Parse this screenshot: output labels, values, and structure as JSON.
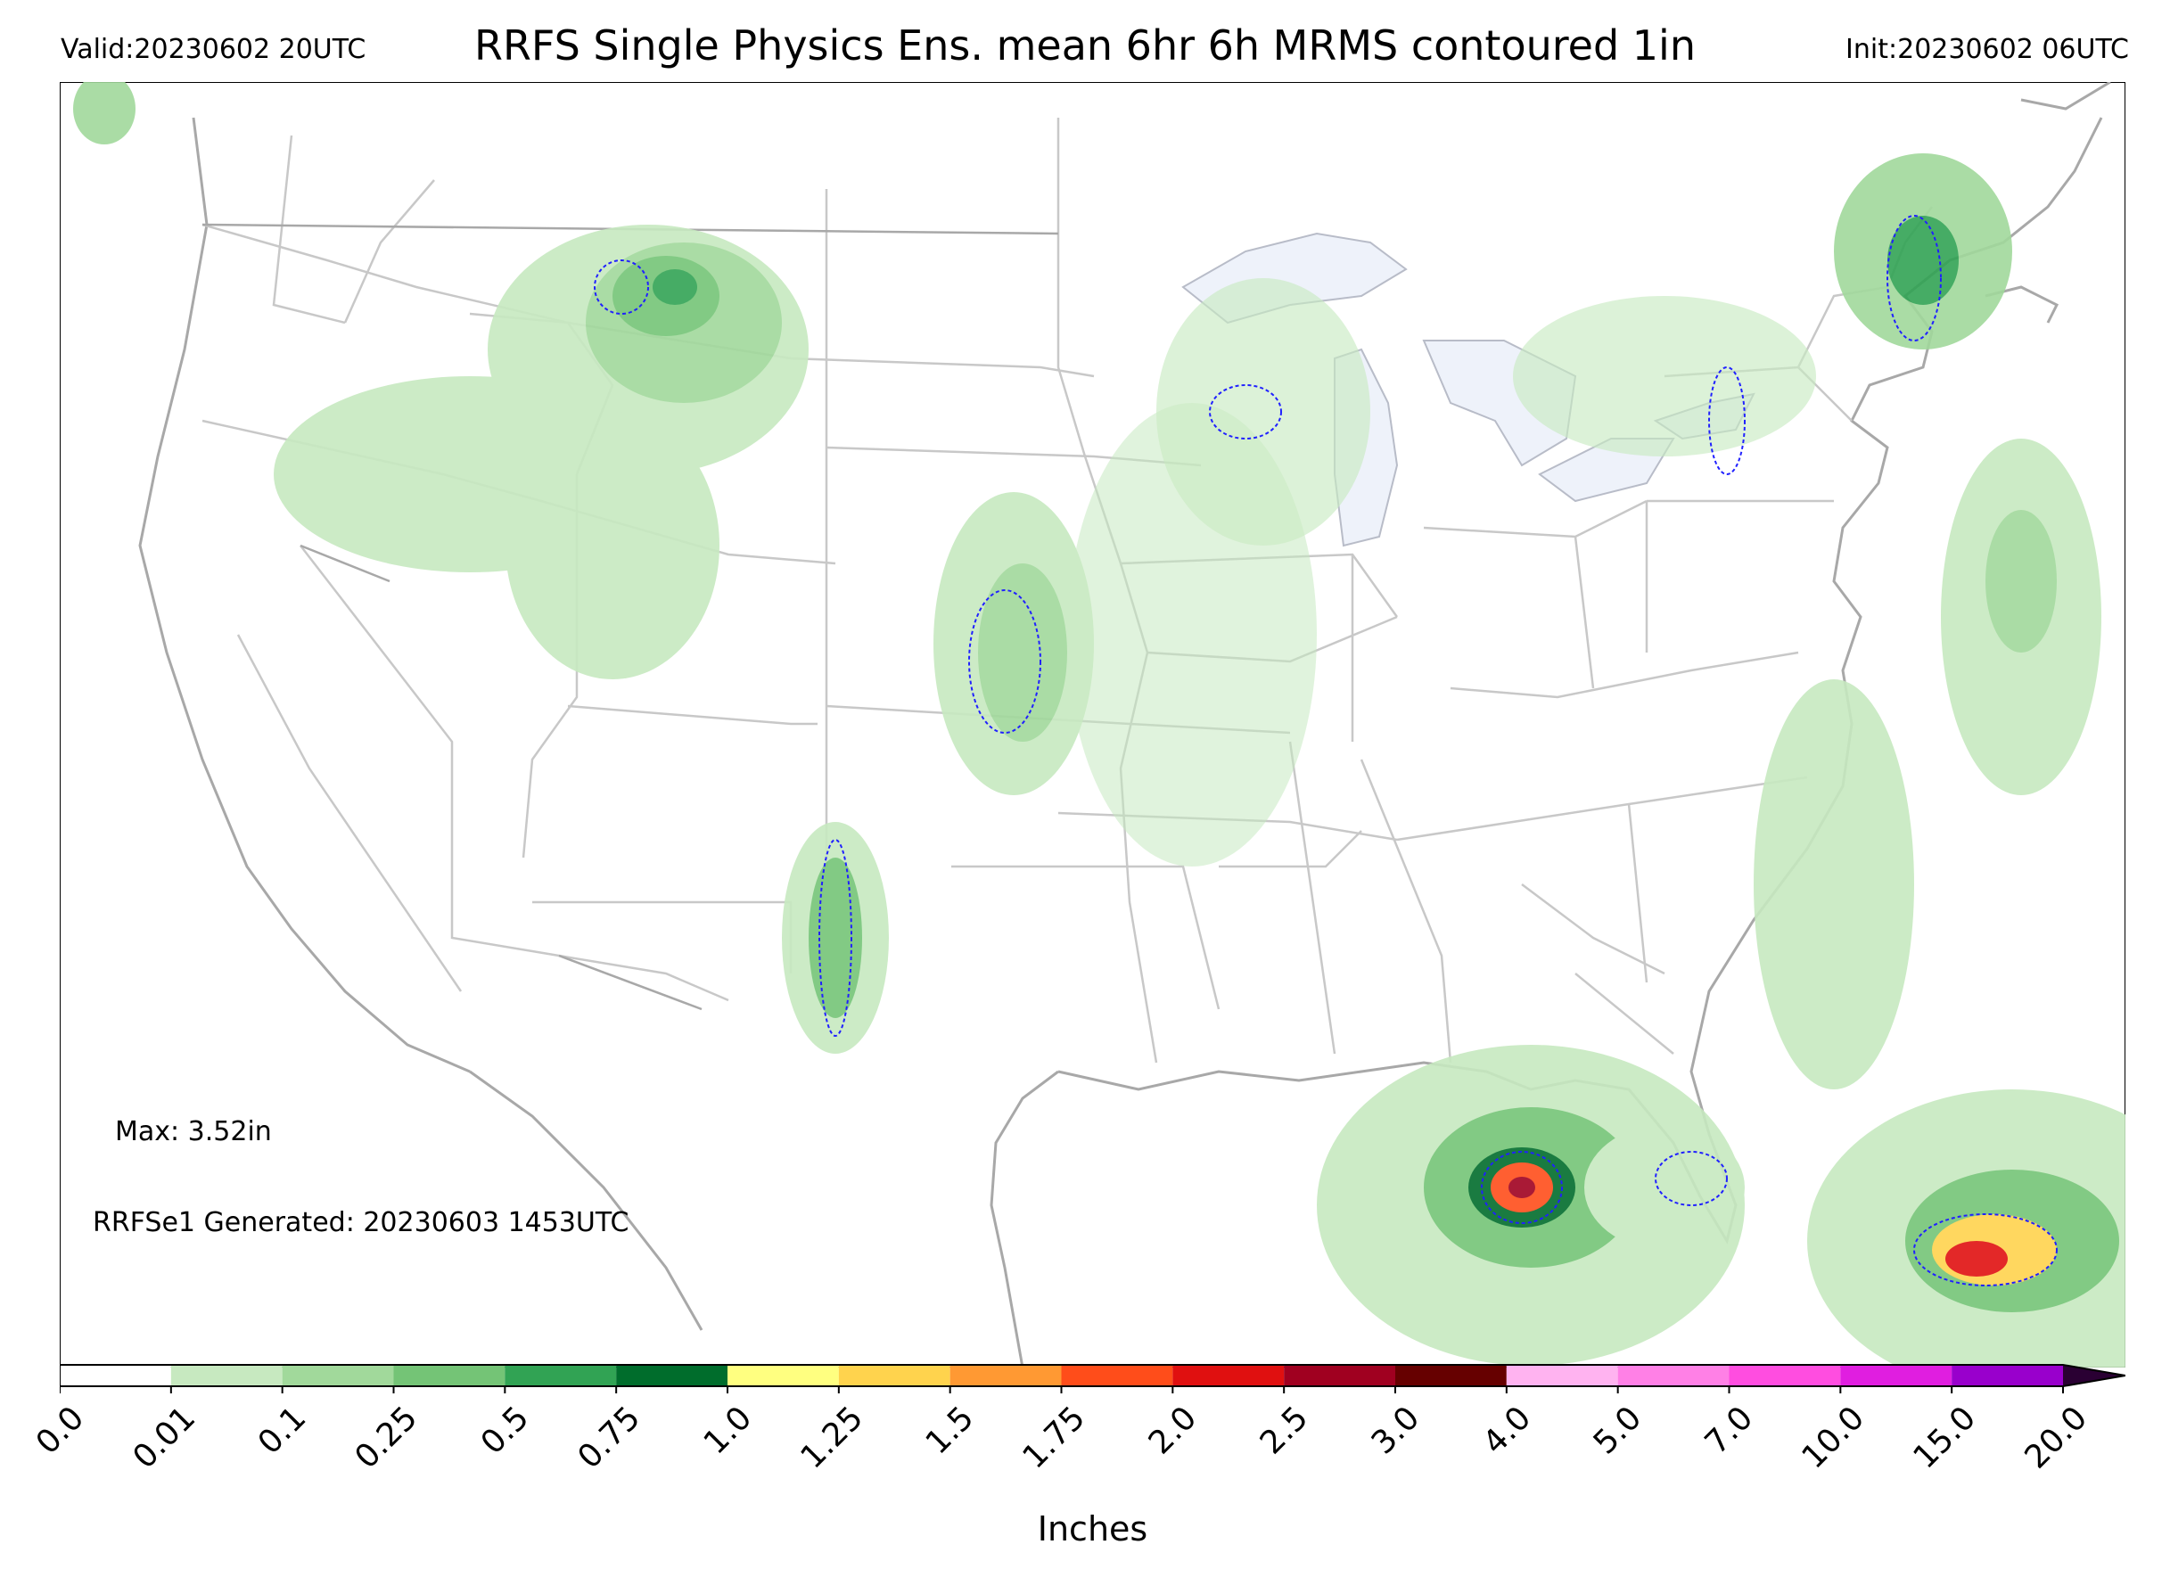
{
  "header": {
    "valid": "Valid:20230602 20UTC",
    "title": "RRFS Single Physics Ens. mean 6hr 6h MRMS contoured 1in",
    "init": "Init:20230602 06UTC"
  },
  "annotations": {
    "max": "Max: 3.52in",
    "generated": "RRFSe1 Generated: 20230603 1453UTC"
  },
  "colorbar": {
    "title": "Inches",
    "ticks": [
      "0.0",
      "0.01",
      "0.1",
      "0.25",
      "0.5",
      "0.75",
      "1.0",
      "1.25",
      "1.5",
      "1.75",
      "2.0",
      "2.5",
      "3.0",
      "4.0",
      "5.0",
      "7.0",
      "10.0",
      "15.0",
      "20.0"
    ],
    "colors": [
      "#ffffff",
      "#c7e9c0",
      "#a1d99b",
      "#74c476",
      "#31a354",
      "#006d2c",
      "#ffff80",
      "#ffd34d",
      "#ff9933",
      "#ff4d1a",
      "#e01010",
      "#a00020",
      "#660000",
      "#ffb3f0",
      "#ff80e6",
      "#ff4de0",
      "#e01ee0",
      "#9900cc"
    ],
    "extend": "max"
  },
  "map": {
    "colors": {
      "land_outline": "#a8a8a8",
      "state_lines": "#c8c8c8",
      "lakes": "#eef2fa",
      "precip_light": "#c7e9c0",
      "precip_mid": "#74c476",
      "precip_dark": "#006d2c",
      "mrms_contour": "#2020ff"
    }
  }
}
